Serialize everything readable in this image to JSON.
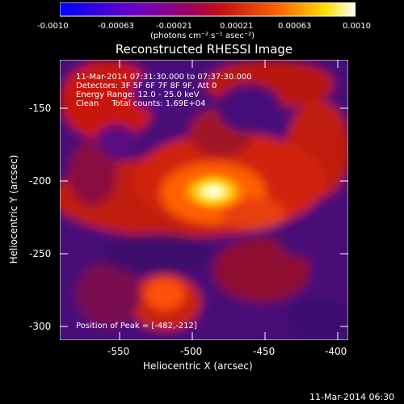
{
  "colorbar": {
    "tick_labels": [
      "-0.0010",
      "-0.00063",
      "-0.00021",
      "0.00021",
      "0.00063",
      "0.0010"
    ],
    "unit_label": "(photons cm⁻² s⁻¹ asec⁻²)",
    "range": [
      -0.001,
      0.001
    ],
    "colormap": [
      "#0000ff",
      "#8000b0",
      "#d00020",
      "#ff6000",
      "#ffff00",
      "#ffffff"
    ]
  },
  "title": "Reconstructed RHESSI Image",
  "annotation": {
    "line1": "11-Mar-2014 07:31:30.000 to 07:37:30.000",
    "line2": "Detectors: 3F 5F 6F 7F 8F 9F, Att 0",
    "line3": "Energy Range: 12.0 - 25.0 keV",
    "line4": "Clean     Total counts: 1.69E+04",
    "peak": "Position of Peak = [-482,-212]"
  },
  "axes": {
    "xlabel": "Heliocentric X (arcsec)",
    "ylabel": "Heliocentric Y (arcsec)",
    "xticks": [
      "-550",
      "-500",
      "-450",
      "-400"
    ],
    "yticks": [
      "-150",
      "-200",
      "-250",
      "-300"
    ],
    "xrange": [
      -590,
      -397
    ],
    "yrange": [
      -313,
      -126
    ]
  },
  "footer": "11-Mar-2014 06:30"
}
